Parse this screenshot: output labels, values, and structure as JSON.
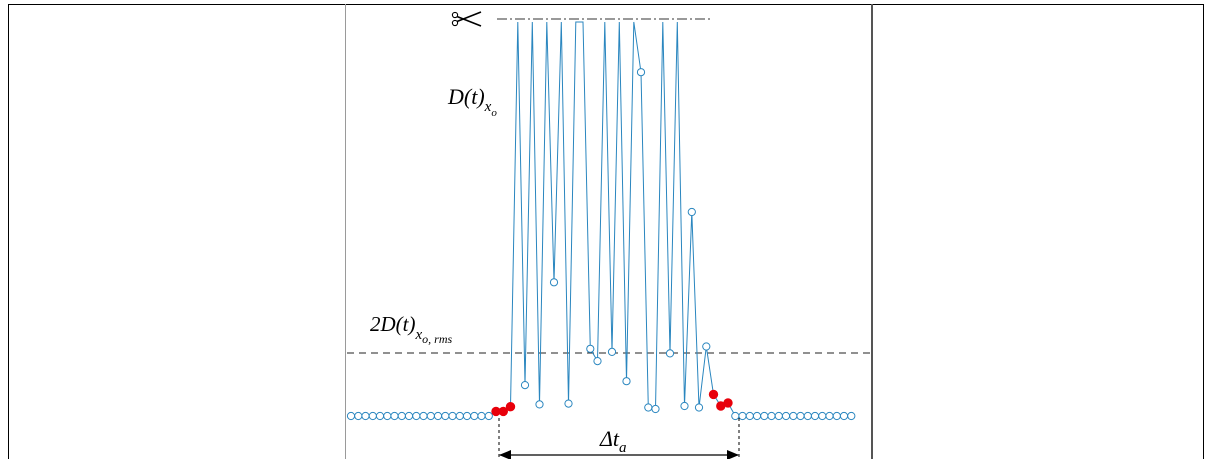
{
  "labels": {
    "d_main": "D(t)",
    "d_main_sub": "x",
    "d_main_subsub": "o",
    "threshold_main": "2D(t)",
    "threshold_sub": "x",
    "threshold_subsub": "o, rms",
    "dt_main": "Δt",
    "dt_sub": "a"
  },
  "icons": {
    "cut": "scissors-icon"
  },
  "colors": {
    "signal": "#2a86bf",
    "marker_out": "#2a86bf",
    "marker_edge": "#e8000b",
    "threshold": "#222222"
  },
  "chart_data": {
    "type": "line",
    "title": "",
    "xlabel": "",
    "ylabel": "",
    "threshold_level": 82,
    "clip_level": 510,
    "baseline_left_count": 20,
    "baseline_right_count": 17,
    "burst_series": [
      {
        "y": 6,
        "edge": true
      },
      {
        "y": 6,
        "edge": true
      },
      {
        "y": 12,
        "edge": true
      },
      {
        "y": 510
      },
      {
        "y": 40
      },
      {
        "y": 510
      },
      {
        "y": 15
      },
      {
        "y": 510
      },
      {
        "y": 173
      },
      {
        "y": 510
      },
      {
        "y": 16
      },
      {
        "y": 510
      },
      {
        "y": 510
      },
      {
        "y": 87
      },
      {
        "y": 71
      },
      {
        "y": 510
      },
      {
        "y": 83
      },
      {
        "y": 510
      },
      {
        "y": 45
      },
      {
        "y": 510
      },
      {
        "y": 445
      },
      {
        "y": 11
      },
      {
        "y": 9
      },
      {
        "y": 510
      },
      {
        "y": 81
      },
      {
        "y": 510
      },
      {
        "y": 13
      },
      {
        "y": 264
      },
      {
        "y": 11
      },
      {
        "y": 90
      },
      {
        "y": 28,
        "edge": true
      },
      {
        "y": 13,
        "edge": true
      },
      {
        "y": 17,
        "edge": true
      }
    ]
  }
}
